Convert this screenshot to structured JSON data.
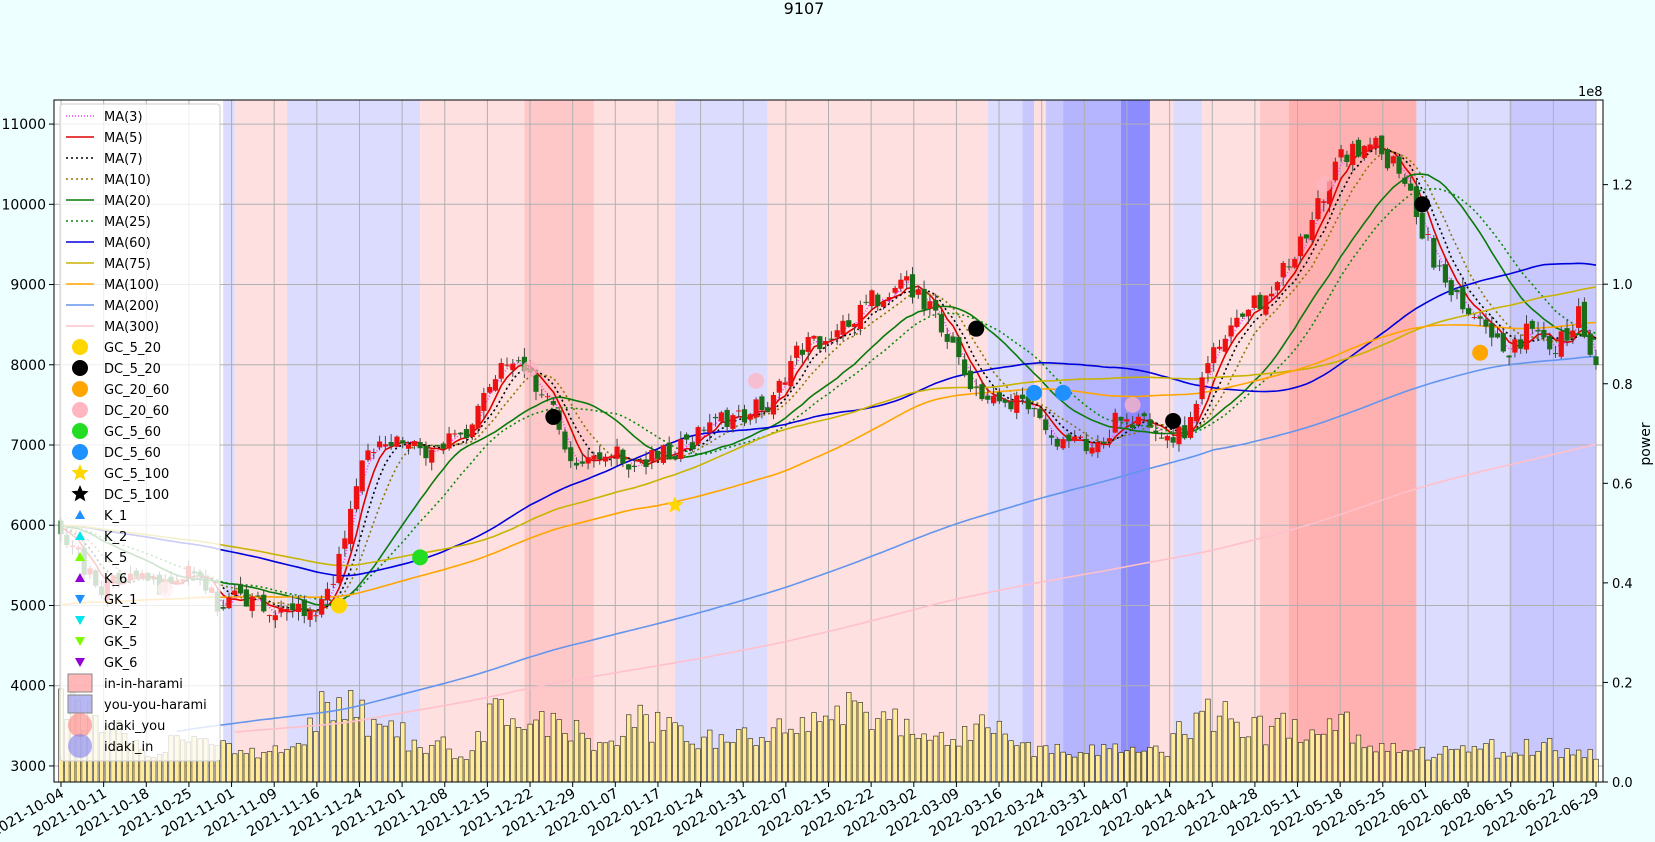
{
  "chart_data": {
    "type": "candlestick",
    "title": "9107",
    "ylabel_right": "power",
    "right_axis_multiplier": "1e8",
    "ylim_left": [
      2800,
      11300
    ],
    "ylim_right": [
      0,
      1.37
    ],
    "yticks_left": [
      "3000",
      "4000",
      "5000",
      "6000",
      "7000",
      "8000",
      "9000",
      "10000",
      "11000"
    ],
    "yticks_right": [
      "0.0",
      "0.2",
      "0.4",
      "0.6",
      "0.8",
      "1.0",
      "1.2"
    ],
    "x_ticks": [
      "2021-10-04",
      "2021-10-11",
      "2021-10-18",
      "2021-10-25",
      "2021-11-01",
      "2021-11-09",
      "2021-11-16",
      "2021-11-24",
      "2021-12-01",
      "2021-12-08",
      "2021-12-15",
      "2021-12-22",
      "2021-12-29",
      "2022-01-07",
      "2022-01-17",
      "2022-01-24",
      "2022-01-31",
      "2022-02-07",
      "2022-02-15",
      "2022-02-22",
      "2022-03-02",
      "2022-03-09",
      "2022-03-16",
      "2022-03-24",
      "2022-03-31",
      "2022-04-07",
      "2022-04-14",
      "2022-04-21",
      "2022-04-28",
      "2022-05-11",
      "2022-05-18",
      "2022-05-25",
      "2022-06-01",
      "2022-06-08",
      "2022-06-15",
      "2022-06-22",
      "2022-06-29"
    ],
    "close_anchors": [
      [
        0,
        6000
      ],
      [
        3,
        5600
      ],
      [
        7,
        5200
      ],
      [
        12,
        5350
      ],
      [
        17,
        5200
      ],
      [
        22,
        5500
      ],
      [
        27,
        5050
      ],
      [
        33,
        5100
      ],
      [
        38,
        4900
      ],
      [
        45,
        5000
      ],
      [
        48,
        5550
      ],
      [
        52,
        6900
      ],
      [
        57,
        7050
      ],
      [
        62,
        6900
      ],
      [
        65,
        7000
      ],
      [
        70,
        7050
      ],
      [
        75,
        7900
      ],
      [
        80,
        8000
      ],
      [
        85,
        7400
      ],
      [
        89,
        6700
      ],
      [
        93,
        6950
      ],
      [
        98,
        6800
      ],
      [
        103,
        6850
      ],
      [
        108,
        7000
      ],
      [
        113,
        7300
      ],
      [
        118,
        7400
      ],
      [
        123,
        7550
      ],
      [
        127,
        8200
      ],
      [
        132,
        8300
      ],
      [
        136,
        8500
      ],
      [
        140,
        8800
      ],
      [
        145,
        9050
      ],
      [
        149,
        8800
      ],
      [
        154,
        8300
      ],
      [
        158,
        7600
      ],
      [
        163,
        7600
      ],
      [
        167,
        7500
      ],
      [
        171,
        7100
      ],
      [
        175,
        7050
      ],
      [
        179,
        7000
      ],
      [
        182,
        7300
      ],
      [
        186,
        7350
      ],
      [
        190,
        7000
      ],
      [
        194,
        7200
      ],
      [
        198,
        8000
      ],
      [
        203,
        8500
      ],
      [
        208,
        8900
      ],
      [
        213,
        9300
      ],
      [
        217,
        10000
      ],
      [
        221,
        10600
      ],
      [
        226,
        10800
      ],
      [
        231,
        10400
      ],
      [
        235,
        9700
      ],
      [
        238,
        9150
      ],
      [
        242,
        8700
      ],
      [
        246,
        8400
      ],
      [
        250,
        8200
      ],
      [
        254,
        8450
      ],
      [
        258,
        8200
      ],
      [
        262,
        8600
      ],
      [
        265,
        8000
      ]
    ],
    "volume_anchors": [
      [
        0,
        0.15
      ],
      [
        5,
        0.14
      ],
      [
        8,
        0.12
      ],
      [
        15,
        0.06
      ],
      [
        22,
        0.08
      ],
      [
        30,
        0.06
      ],
      [
        38,
        0.06
      ],
      [
        42,
        0.08
      ],
      [
        46,
        0.18
      ],
      [
        50,
        0.16
      ],
      [
        55,
        0.11
      ],
      [
        62,
        0.08
      ],
      [
        70,
        0.06
      ],
      [
        75,
        0.14
      ],
      [
        80,
        0.1
      ],
      [
        86,
        0.12
      ],
      [
        93,
        0.08
      ],
      [
        100,
        0.12
      ],
      [
        110,
        0.08
      ],
      [
        120,
        0.09
      ],
      [
        130,
        0.11
      ],
      [
        138,
        0.16
      ],
      [
        146,
        0.12
      ],
      [
        155,
        0.08
      ],
      [
        160,
        0.11
      ],
      [
        166,
        0.07
      ],
      [
        172,
        0.06
      ],
      [
        180,
        0.06
      ],
      [
        190,
        0.06
      ],
      [
        195,
        0.12
      ],
      [
        200,
        0.14
      ],
      [
        205,
        0.1
      ],
      [
        212,
        0.11
      ],
      [
        220,
        0.12
      ],
      [
        228,
        0.08
      ],
      [
        235,
        0.06
      ],
      [
        242,
        0.06
      ],
      [
        250,
        0.07
      ],
      [
        258,
        0.07
      ],
      [
        265,
        0.06
      ]
    ],
    "vertical_bands": [
      {
        "from": 28,
        "to": 30,
        "color": "#dcdcff"
      },
      {
        "from": 30,
        "to": 39,
        "color": "#ffe0e0"
      },
      {
        "from": 39,
        "to": 62,
        "color": "#dcdcff"
      },
      {
        "from": 62,
        "to": 80,
        "color": "#ffe0e0"
      },
      {
        "from": 80,
        "to": 92,
        "color": "#ffc8c8"
      },
      {
        "from": 92,
        "to": 106,
        "color": "#ffe0e0"
      },
      {
        "from": 106,
        "to": 122,
        "color": "#dcdcff"
      },
      {
        "from": 122,
        "to": 160,
        "color": "#ffe0e0"
      },
      {
        "from": 160,
        "to": 166,
        "color": "#dcdcff"
      },
      {
        "from": 166,
        "to": 168,
        "color": "#c8c8ff"
      },
      {
        "from": 168,
        "to": 170,
        "color": "#ffe0e0"
      },
      {
        "from": 170,
        "to": 173,
        "color": "#c8c8ff"
      },
      {
        "from": 173,
        "to": 183,
        "color": "#b4b4ff"
      },
      {
        "from": 183,
        "to": 188,
        "color": "#8c8cff"
      },
      {
        "from": 188,
        "to": 192,
        "color": "#ffe0e0"
      },
      {
        "from": 192,
        "to": 197,
        "color": "#dcdcff"
      },
      {
        "from": 197,
        "to": 207,
        "color": "#ffe0e0"
      },
      {
        "from": 207,
        "to": 212,
        "color": "#ffc8c8"
      },
      {
        "from": 212,
        "to": 234,
        "color": "#ffb0b0"
      },
      {
        "from": 234,
        "to": 250,
        "color": "#dcdcff"
      },
      {
        "from": 250,
        "to": 265,
        "color": "#c8c8ff"
      }
    ],
    "ma_series": [
      {
        "name": "MA(3)",
        "color": "#ff33ff",
        "dash": "1,2",
        "period": 3,
        "from": 0
      },
      {
        "name": "MA(5)",
        "color": "#e00000",
        "dash": "",
        "period": 5,
        "from": 0
      },
      {
        "name": "MA(7)",
        "color": "#000000",
        "dash": "2,3",
        "period": 7,
        "from": 0
      },
      {
        "name": "MA(10)",
        "color": "#8b7500",
        "dash": "2,3",
        "period": 10,
        "from": 0
      },
      {
        "name": "MA(20)",
        "color": "#0a7a0a",
        "dash": "",
        "period": 20,
        "from": 0
      },
      {
        "name": "MA(25)",
        "color": "#0a8a0a",
        "dash": "2,3",
        "period": 25,
        "from": 0
      },
      {
        "name": "MA(60)",
        "color": "#0000dd",
        "dash": "",
        "period": 60,
        "from": 0
      },
      {
        "name": "MA(75)",
        "color": "#c8b400",
        "dash": "",
        "period": 75,
        "from": 0
      },
      {
        "name": "MA(100)",
        "color": "#ffa500",
        "dash": "",
        "period": 100,
        "from": 0
      },
      {
        "name": "MA(200)",
        "color": "#6495ed",
        "dash": "",
        "period": 200,
        "from": 0
      },
      {
        "name": "MA(300)",
        "color": "#ffc0cb",
        "dash": "",
        "period": 300,
        "from": 0
      }
    ],
    "markers": [
      {
        "kind": "GC_5_20",
        "i": 48,
        "y": 5000
      },
      {
        "kind": "DC_5_20",
        "i": 85,
        "y": 7350
      },
      {
        "kind": "DC_5_20",
        "i": 158,
        "y": 8450
      },
      {
        "kind": "DC_5_20",
        "i": 192,
        "y": 7300
      },
      {
        "kind": "DC_5_20",
        "i": 235,
        "y": 10000
      },
      {
        "kind": "GC_5_60",
        "i": 62,
        "y": 5600
      },
      {
        "kind": "DC_5_60",
        "i": 168,
        "y": 7650
      },
      {
        "kind": "DC_5_60",
        "i": 173,
        "y": 7650
      },
      {
        "kind": "GC_5_100",
        "i": 106,
        "y": 6250
      },
      {
        "kind": "DC_20_60",
        "i": 18,
        "y": 5200
      },
      {
        "kind": "DC_20_60",
        "i": 81,
        "y": 7950
      },
      {
        "kind": "DC_20_60",
        "i": 120,
        "y": 7800
      },
      {
        "kind": "DC_20_60",
        "i": 185,
        "y": 7500
      },
      {
        "kind": "DC_20_60",
        "i": 218,
        "y": 10250
      },
      {
        "kind": "GC_20_60",
        "i": 245,
        "y": 8150
      }
    ],
    "legend": [
      {
        "label": "MA(3)",
        "type": "line",
        "color": "#ff33ff",
        "dash": "1,2"
      },
      {
        "label": "MA(5)",
        "type": "line",
        "color": "#e00000",
        "dash": ""
      },
      {
        "label": "MA(7)",
        "type": "line",
        "color": "#000000",
        "dash": "2,3"
      },
      {
        "label": "MA(10)",
        "type": "line",
        "color": "#8b7500",
        "dash": "2,3"
      },
      {
        "label": "MA(20)",
        "type": "line",
        "color": "#0a7a0a",
        "dash": ""
      },
      {
        "label": "MA(25)",
        "type": "line",
        "color": "#0a8a0a",
        "dash": "2,3"
      },
      {
        "label": "MA(60)",
        "type": "line",
        "color": "#0000dd",
        "dash": ""
      },
      {
        "label": "MA(75)",
        "type": "line",
        "color": "#c8b400",
        "dash": ""
      },
      {
        "label": "MA(100)",
        "type": "line",
        "color": "#ffa500",
        "dash": ""
      },
      {
        "label": "MA(200)",
        "type": "line",
        "color": "#6495ed",
        "dash": ""
      },
      {
        "label": "MA(300)",
        "type": "line",
        "color": "#ffc0cb",
        "dash": ""
      },
      {
        "label": "GC_5_20",
        "type": "circle",
        "color": "#ffd700"
      },
      {
        "label": "DC_5_20",
        "type": "circle",
        "color": "#000000"
      },
      {
        "label": "GC_20_60",
        "type": "circle",
        "color": "#ffa500"
      },
      {
        "label": "DC_20_60",
        "type": "circle",
        "color": "#ffb6c1"
      },
      {
        "label": "GC_5_60",
        "type": "circle",
        "color": "#22dd22"
      },
      {
        "label": "DC_5_60",
        "type": "circle",
        "color": "#1e90ff"
      },
      {
        "label": "GC_5_100",
        "type": "star",
        "color": "#ffd700"
      },
      {
        "label": "DC_5_100",
        "type": "star",
        "color": "#000000"
      },
      {
        "label": "K_1",
        "type": "tri-up",
        "color": "#1e90ff"
      },
      {
        "label": "K_2",
        "type": "tri-up",
        "color": "#00e5ee"
      },
      {
        "label": "K_5",
        "type": "tri-up",
        "color": "#7cfc00"
      },
      {
        "label": "K_6",
        "type": "tri-up",
        "color": "#9400d3"
      },
      {
        "label": "GK_1",
        "type": "tri-down",
        "color": "#1e90ff"
      },
      {
        "label": "GK_2",
        "type": "tri-down",
        "color": "#00e5ee"
      },
      {
        "label": "GK_5",
        "type": "tri-down",
        "color": "#7cfc00"
      },
      {
        "label": "GK_6",
        "type": "tri-down",
        "color": "#9400d3"
      },
      {
        "label": "in-in-harami",
        "type": "box",
        "color": "#ff9999"
      },
      {
        "label": "you-you-harami",
        "type": "box",
        "color": "#9999ee"
      },
      {
        "label": "idaki_you",
        "type": "bigcircle",
        "color": "#ff8080"
      },
      {
        "label": "idaki_in",
        "type": "bigcircle",
        "color": "#8080ee"
      }
    ],
    "colors": {
      "up": "#ee1111",
      "down": "#1a6e1a",
      "volume": "#ffeb99",
      "background": "#eeffff",
      "axes_bg": "#ffffff",
      "grid": "#b0b0b0"
    }
  }
}
